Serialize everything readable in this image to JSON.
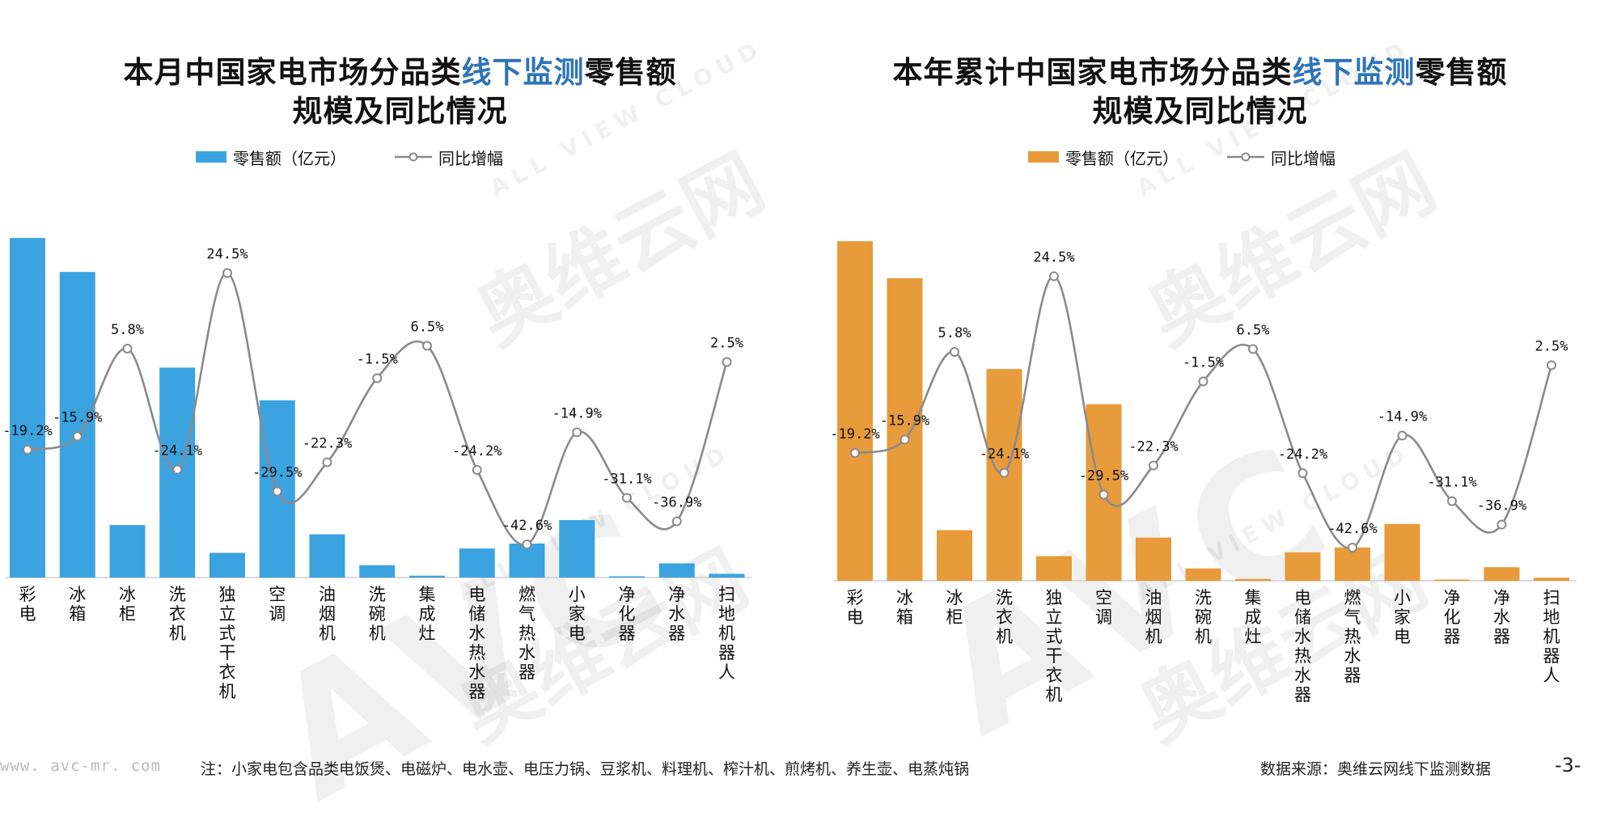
{
  "left_chart": {
    "title_parts": [
      "本月中国家电市场分品类",
      "线下监测",
      "零售额"
    ],
    "title_line2": "规模及同比情况",
    "legend": {
      "bar": "零售额（亿元）",
      "line": "同比增幅"
    }
  },
  "right_chart": {
    "title_parts": [
      "本年累计中国家电市场分品类",
      "线下监测",
      "零售额"
    ],
    "title_line2": "规模及同比情况",
    "legend": {
      "bar": "零售额（亿元）",
      "line": "同比增幅"
    }
  },
  "footer": {
    "site": "www. avc-mr. com",
    "note": "注：小家电包含品类电饭煲、电磁炉、电水壶、电压力锅、豆浆机、料理机、榨汁机、煎烤机、养生壶、电蒸炖锅",
    "source": "数据来源：奥维云网线下监测数据",
    "page": "-3-"
  },
  "watermark": {
    "logo": "AVC",
    "cn": "奥维云网",
    "en": "ALL VIEW CLOUD"
  },
  "colors": {
    "bar_left": "#3ba3e0",
    "bar_right": "#e79b3a",
    "line": "#8a8a8a",
    "title_highlight": "#2e74b8"
  },
  "chart_data": [
    {
      "type": "bar+line",
      "title": "本月中国家电市场分品类线下监测零售额规模及同比情况",
      "categories": [
        "彩电",
        "冰箱",
        "冰柜",
        "洗衣机",
        "独立式干衣机",
        "空调",
        "油烟机",
        "洗碗机",
        "集成灶",
        "电储水热水器",
        "燃气热水器",
        "小家电",
        "净化器",
        "净水器",
        "扫地机器人"
      ],
      "series": [
        {
          "name": "零售额（亿元）",
          "type": "bar",
          "values": [
            55.0,
            49.5,
            8.5,
            34.0,
            4.0,
            28.7,
            7.0,
            2.0,
            0.3,
            4.7,
            5.5,
            9.3,
            0.2,
            2.3,
            0.6
          ]
        },
        {
          "name": "同比增幅",
          "type": "line",
          "values": [
            -19.2,
            -15.9,
            5.8,
            -24.1,
            24.5,
            -29.5,
            -22.3,
            -1.5,
            6.5,
            -24.2,
            -42.6,
            -14.9,
            -31.1,
            -36.9,
            2.5
          ],
          "labels": [
            "-19.2%",
            "-15.9%",
            "5.8%",
            "-24.1%",
            "24.5%",
            "-29.5%",
            "-22.3%",
            "-1.5%",
            "6.5%",
            "-24.2%",
            "-42.6%",
            "-14.9%",
            "-31.1%",
            "-36.9%",
            "2.5%"
          ]
        }
      ],
      "bar_ylim": [
        0,
        60
      ],
      "line_ylim": [
        -60,
        30
      ]
    },
    {
      "type": "bar+line",
      "title": "本年累计中国家电市场分品类线下监测零售额规模及同比情况",
      "categories": [
        "彩电",
        "冰箱",
        "冰柜",
        "洗衣机",
        "独立式干衣机",
        "空调",
        "油烟机",
        "洗碗机",
        "集成灶",
        "电储水热水器",
        "燃气热水器",
        "小家电",
        "净化器",
        "净水器",
        "扫地机器人"
      ],
      "series": [
        {
          "name": "零售额（亿元）",
          "type": "bar",
          "values": [
            55.0,
            49.0,
            8.2,
            34.3,
            4.0,
            28.6,
            7.0,
            2.0,
            0.3,
            4.6,
            5.4,
            9.2,
            0.2,
            2.2,
            0.5
          ]
        },
        {
          "name": "同比增幅",
          "type": "line",
          "values": [
            -19.2,
            -15.9,
            5.8,
            -24.1,
            24.5,
            -29.5,
            -22.3,
            -1.5,
            6.5,
            -24.2,
            -42.6,
            -14.9,
            -31.1,
            -36.9,
            2.5
          ],
          "labels": [
            "-19.2%",
            "-15.9%",
            "5.8%",
            "-24.1%",
            "24.5%",
            "-29.5%",
            "-22.3%",
            "-1.5%",
            "6.5%",
            "-24.2%",
            "-42.6%",
            "-14.9%",
            "-31.1%",
            "-36.9%",
            "2.5%"
          ]
        }
      ],
      "bar_ylim": [
        0,
        60
      ],
      "line_ylim": [
        -60,
        30
      ]
    }
  ]
}
